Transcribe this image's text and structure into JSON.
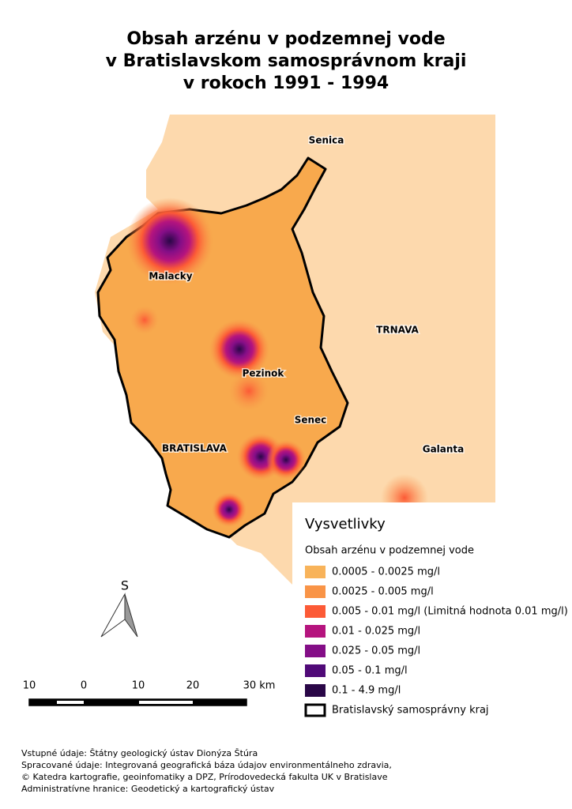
{
  "title": [
    "Obsah arzénu v podzemnej vode",
    "v Bratislavskom samosprávnom kraji",
    "v rokoch 1991 - 1994"
  ],
  "places": [
    "Senica",
    "Malacky",
    "TRNAVA",
    "Pezinok",
    "Senec",
    "BRATISLAVA",
    "Galanta"
  ],
  "north": "S",
  "scale": [
    "10",
    "0",
    "10",
    "20",
    "30 km"
  ],
  "legend": {
    "title": "Vysvetlivky",
    "subtitle": "Obsah arzénu v podzemnej vode",
    "items": [
      {
        "label": "0.0005 - 0.0025 mg/l",
        "color": "#f8b35a"
      },
      {
        "label": "0.0025 - 0.005 mg/l",
        "color": "#f99447"
      },
      {
        "label": "0.005 - 0.01 mg/l (Limitná hodnota 0.01 mg/l)",
        "color": "#fc5a36"
      },
      {
        "label": "0.01 - 0.025 mg/l",
        "color": "#b5147e"
      },
      {
        "label": "0.025 - 0.05 mg/l",
        "color": "#840e87"
      },
      {
        "label": "0.05 - 0.1 mg/l",
        "color": "#500a78"
      },
      {
        "label": "0.1 - 4.9 mg/l",
        "color": "#2a0747"
      }
    ],
    "boundary": "Bratislavský samosprávny kraj"
  },
  "credits": [
    "Vstupné údaje: Štátny geologický ústav Dionýza Štúra",
    "Spracované údaje: Integrovaná geografická báza údajov environmentálneho zdravia,",
    "© Katedra kartografie, geoinfomatiky a DPZ, Prírodovedecká fakulta UK v Bratislave",
    "Administratívne hranice: Geodetický a kartografický ústav"
  ]
}
